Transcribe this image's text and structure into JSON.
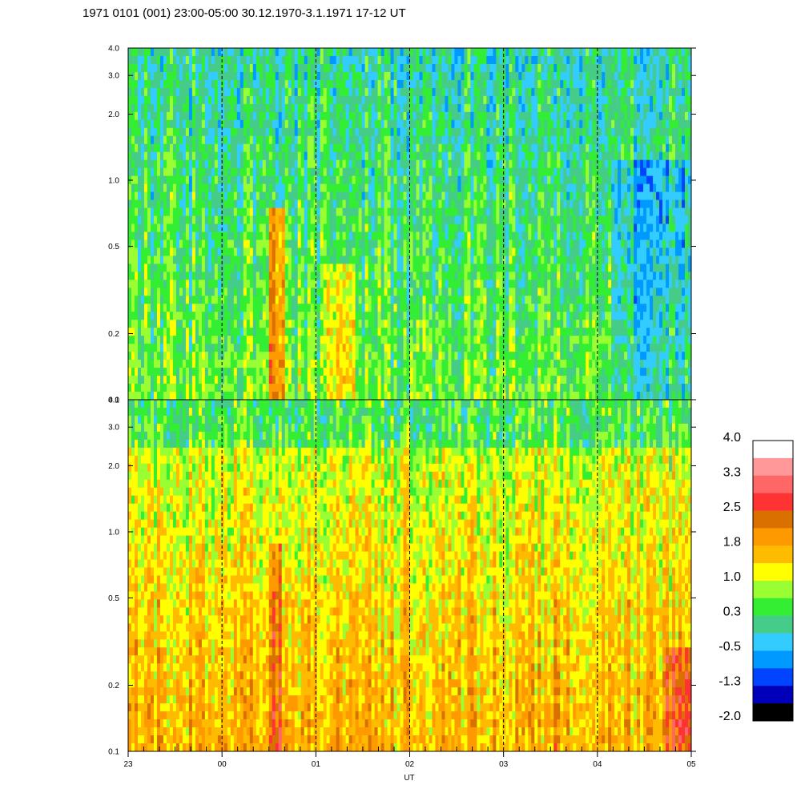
{
  "chart_data": {
    "type": "heatmap",
    "title": "1971 0101 (001) 23:00-05:00 30.12.1970-3.1.1971  17-12 UT",
    "xlabel": "UT",
    "x_ticks": [
      "23",
      "00",
      "01",
      "02",
      "03",
      "04",
      "05"
    ],
    "x_range_hours": [
      23,
      29
    ],
    "dashed_hour_lines": [
      "00",
      "01",
      "02",
      "03",
      "04"
    ],
    "panels": [
      {
        "name": "upper",
        "y_scale": "log",
        "ylim": [
          0.1,
          4.0
        ],
        "y_ticks": [
          "0.1",
          "0.2",
          "0.5",
          "1.0",
          "2.0",
          "3.0",
          "4.0"
        ],
        "dominant_levels": "-0.5 to 0.3 (blue-green)"
      },
      {
        "name": "lower",
        "y_scale": "log",
        "ylim": [
          0.1,
          4.0
        ],
        "y_ticks": [
          "0.1",
          "0.2",
          "0.5",
          "1.0",
          "2.0",
          "3.0",
          "4.0"
        ],
        "dominant_levels": "1.0 to 2.5 (yellow-orange)"
      }
    ],
    "colorbar": {
      "labels": [
        "4.0",
        "3.3",
        "2.5",
        "1.8",
        "1.0",
        "0.3",
        "-0.5",
        "-1.3",
        "-2.0"
      ],
      "range": [
        -2.0,
        4.0
      ],
      "colors": [
        "#ffffff",
        "#ff9999",
        "#ff6666",
        "#ff3333",
        "#d97000",
        "#ff9900",
        "#ffbb00",
        "#ffff00",
        "#99ff33",
        "#33ee33",
        "#44cc88",
        "#33ccff",
        "#0099ff",
        "#0044ff",
        "#0000bb",
        "#000000"
      ]
    }
  }
}
